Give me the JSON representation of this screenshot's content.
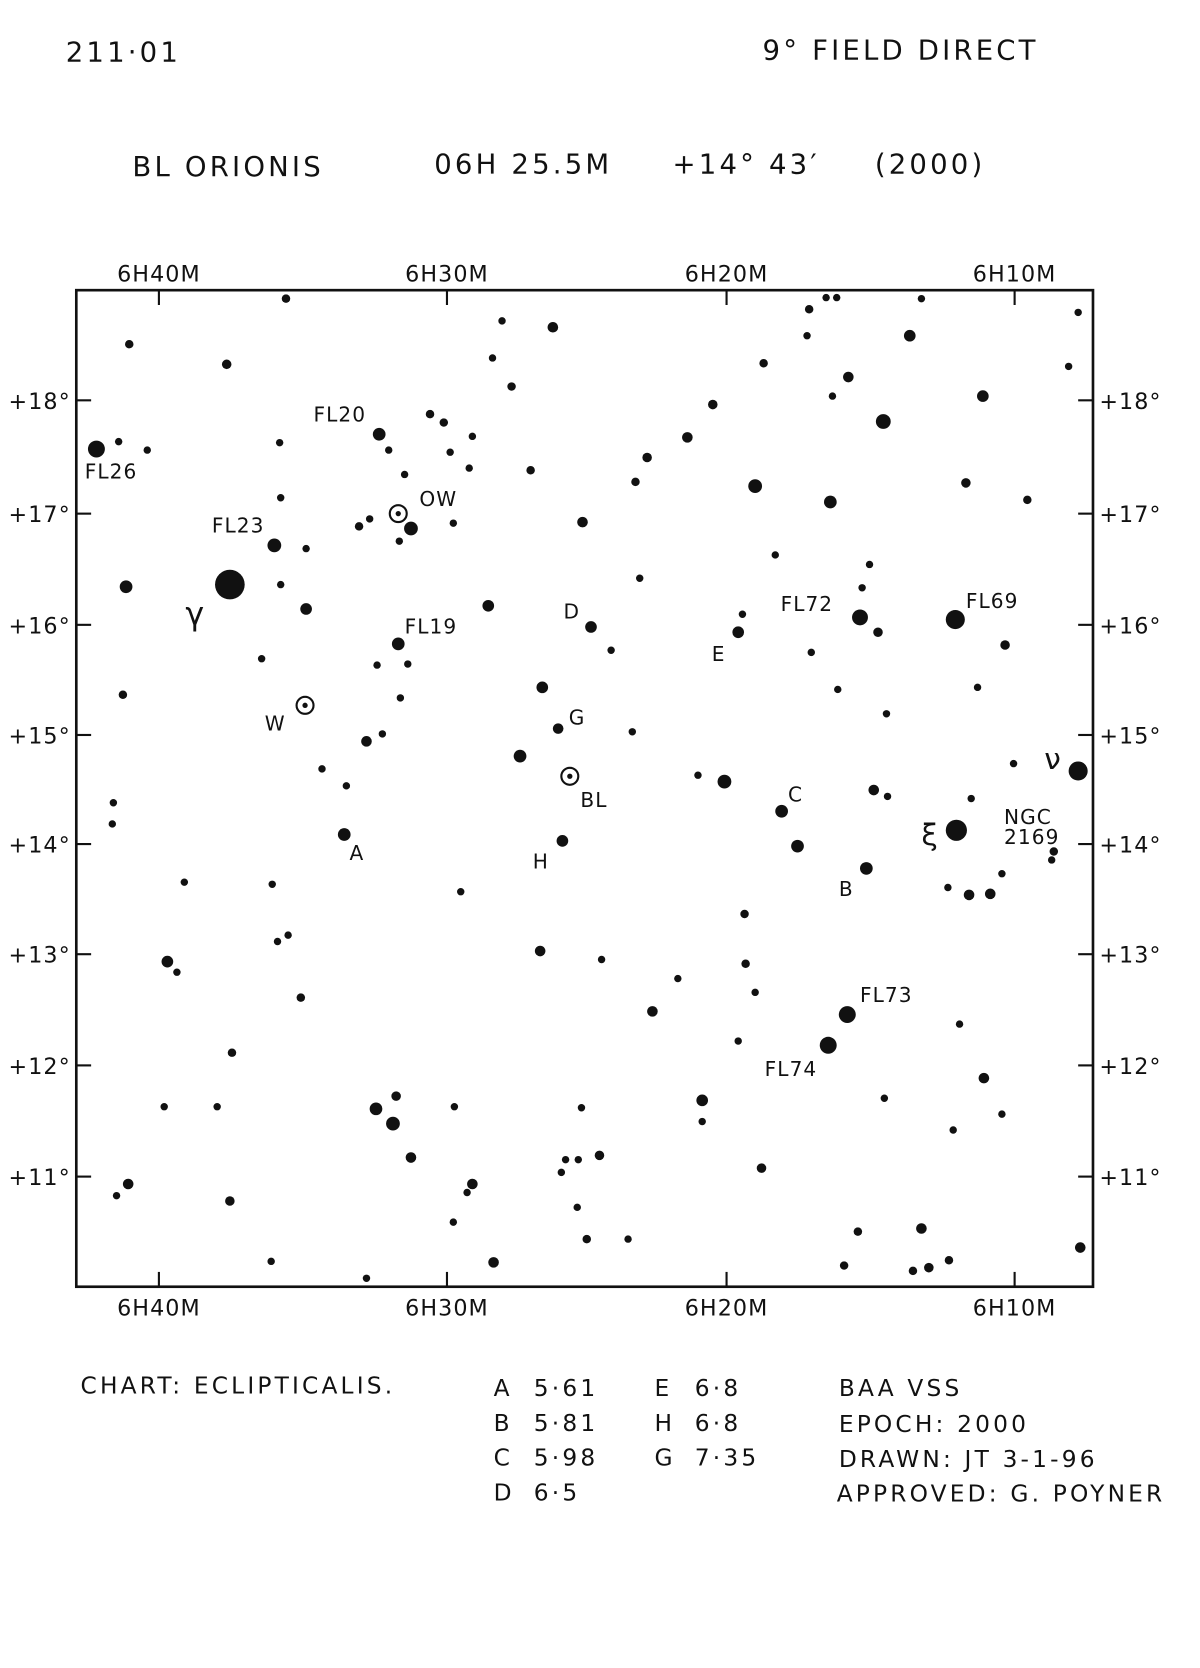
{
  "header": {
    "chart_number": "211·01",
    "field": "9° FIELD DIRECT",
    "star": "BL ORIONIS",
    "ra": "06H 25.5M",
    "dec": "+14° 43′",
    "epoch": "(2000)"
  },
  "axes": {
    "ra_labels": [
      "6H40M",
      "6H30M",
      "6H20M",
      "6H10M"
    ],
    "dec_labels": [
      "+18°",
      "+17°",
      "+16°",
      "+15°",
      "+14°",
      "+13°",
      "+12°",
      "+11°"
    ]
  },
  "star_labels": {
    "fl26": "FL26",
    "fl20": "FL20",
    "fl23": "FL23",
    "ow": "OW",
    "gamma": "γ",
    "fl19": "FL19",
    "w": "W",
    "d": "D",
    "g": "G",
    "bl": "BL",
    "a": "A",
    "h": "H",
    "e": "E",
    "fl72": "FL72",
    "fl69": "FL69",
    "c": "C",
    "xi": "ξ",
    "ngc": "NGC",
    "ngc_num": "2169",
    "b": "B",
    "nu": "ν",
    "fl73": "FL73",
    "fl74": "FL74"
  },
  "footer": {
    "chart": "CHART:  ECLIPTICALIS.",
    "comparisons": [
      [
        "A",
        "5·61"
      ],
      [
        "B",
        "5·81"
      ],
      [
        "C",
        "5·98"
      ],
      [
        "D",
        "6·5"
      ],
      [
        "E",
        "6·8"
      ],
      [
        "H",
        "6·8"
      ],
      [
        "G",
        "7·35"
      ]
    ],
    "organisation": "BAA  VSS",
    "epoch": "EPOCH:  2000",
    "drawn": "DRAWN:  JT 3-1-96",
    "approved": "APPROVED: G. POYNER"
  }
}
